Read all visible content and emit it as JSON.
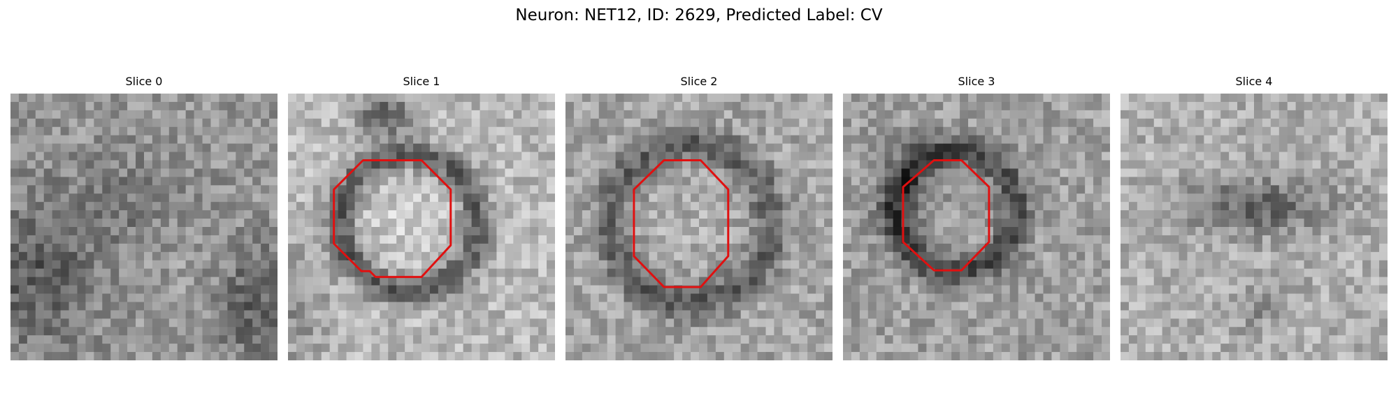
{
  "figure": {
    "title": "Neuron: NET12, ID: 2629, Predicted Label: CV"
  },
  "panels": [
    {
      "title": "Slice 0",
      "has_contour": false
    },
    {
      "title": "Slice 1",
      "has_contour": true
    },
    {
      "title": "Slice 2",
      "has_contour": true
    },
    {
      "title": "Slice 3",
      "has_contour": true
    },
    {
      "title": "Slice 4",
      "has_contour": false
    }
  ],
  "colors": {
    "contour": "#e01010",
    "background": "#ffffff",
    "colormap": "grayscale"
  }
}
